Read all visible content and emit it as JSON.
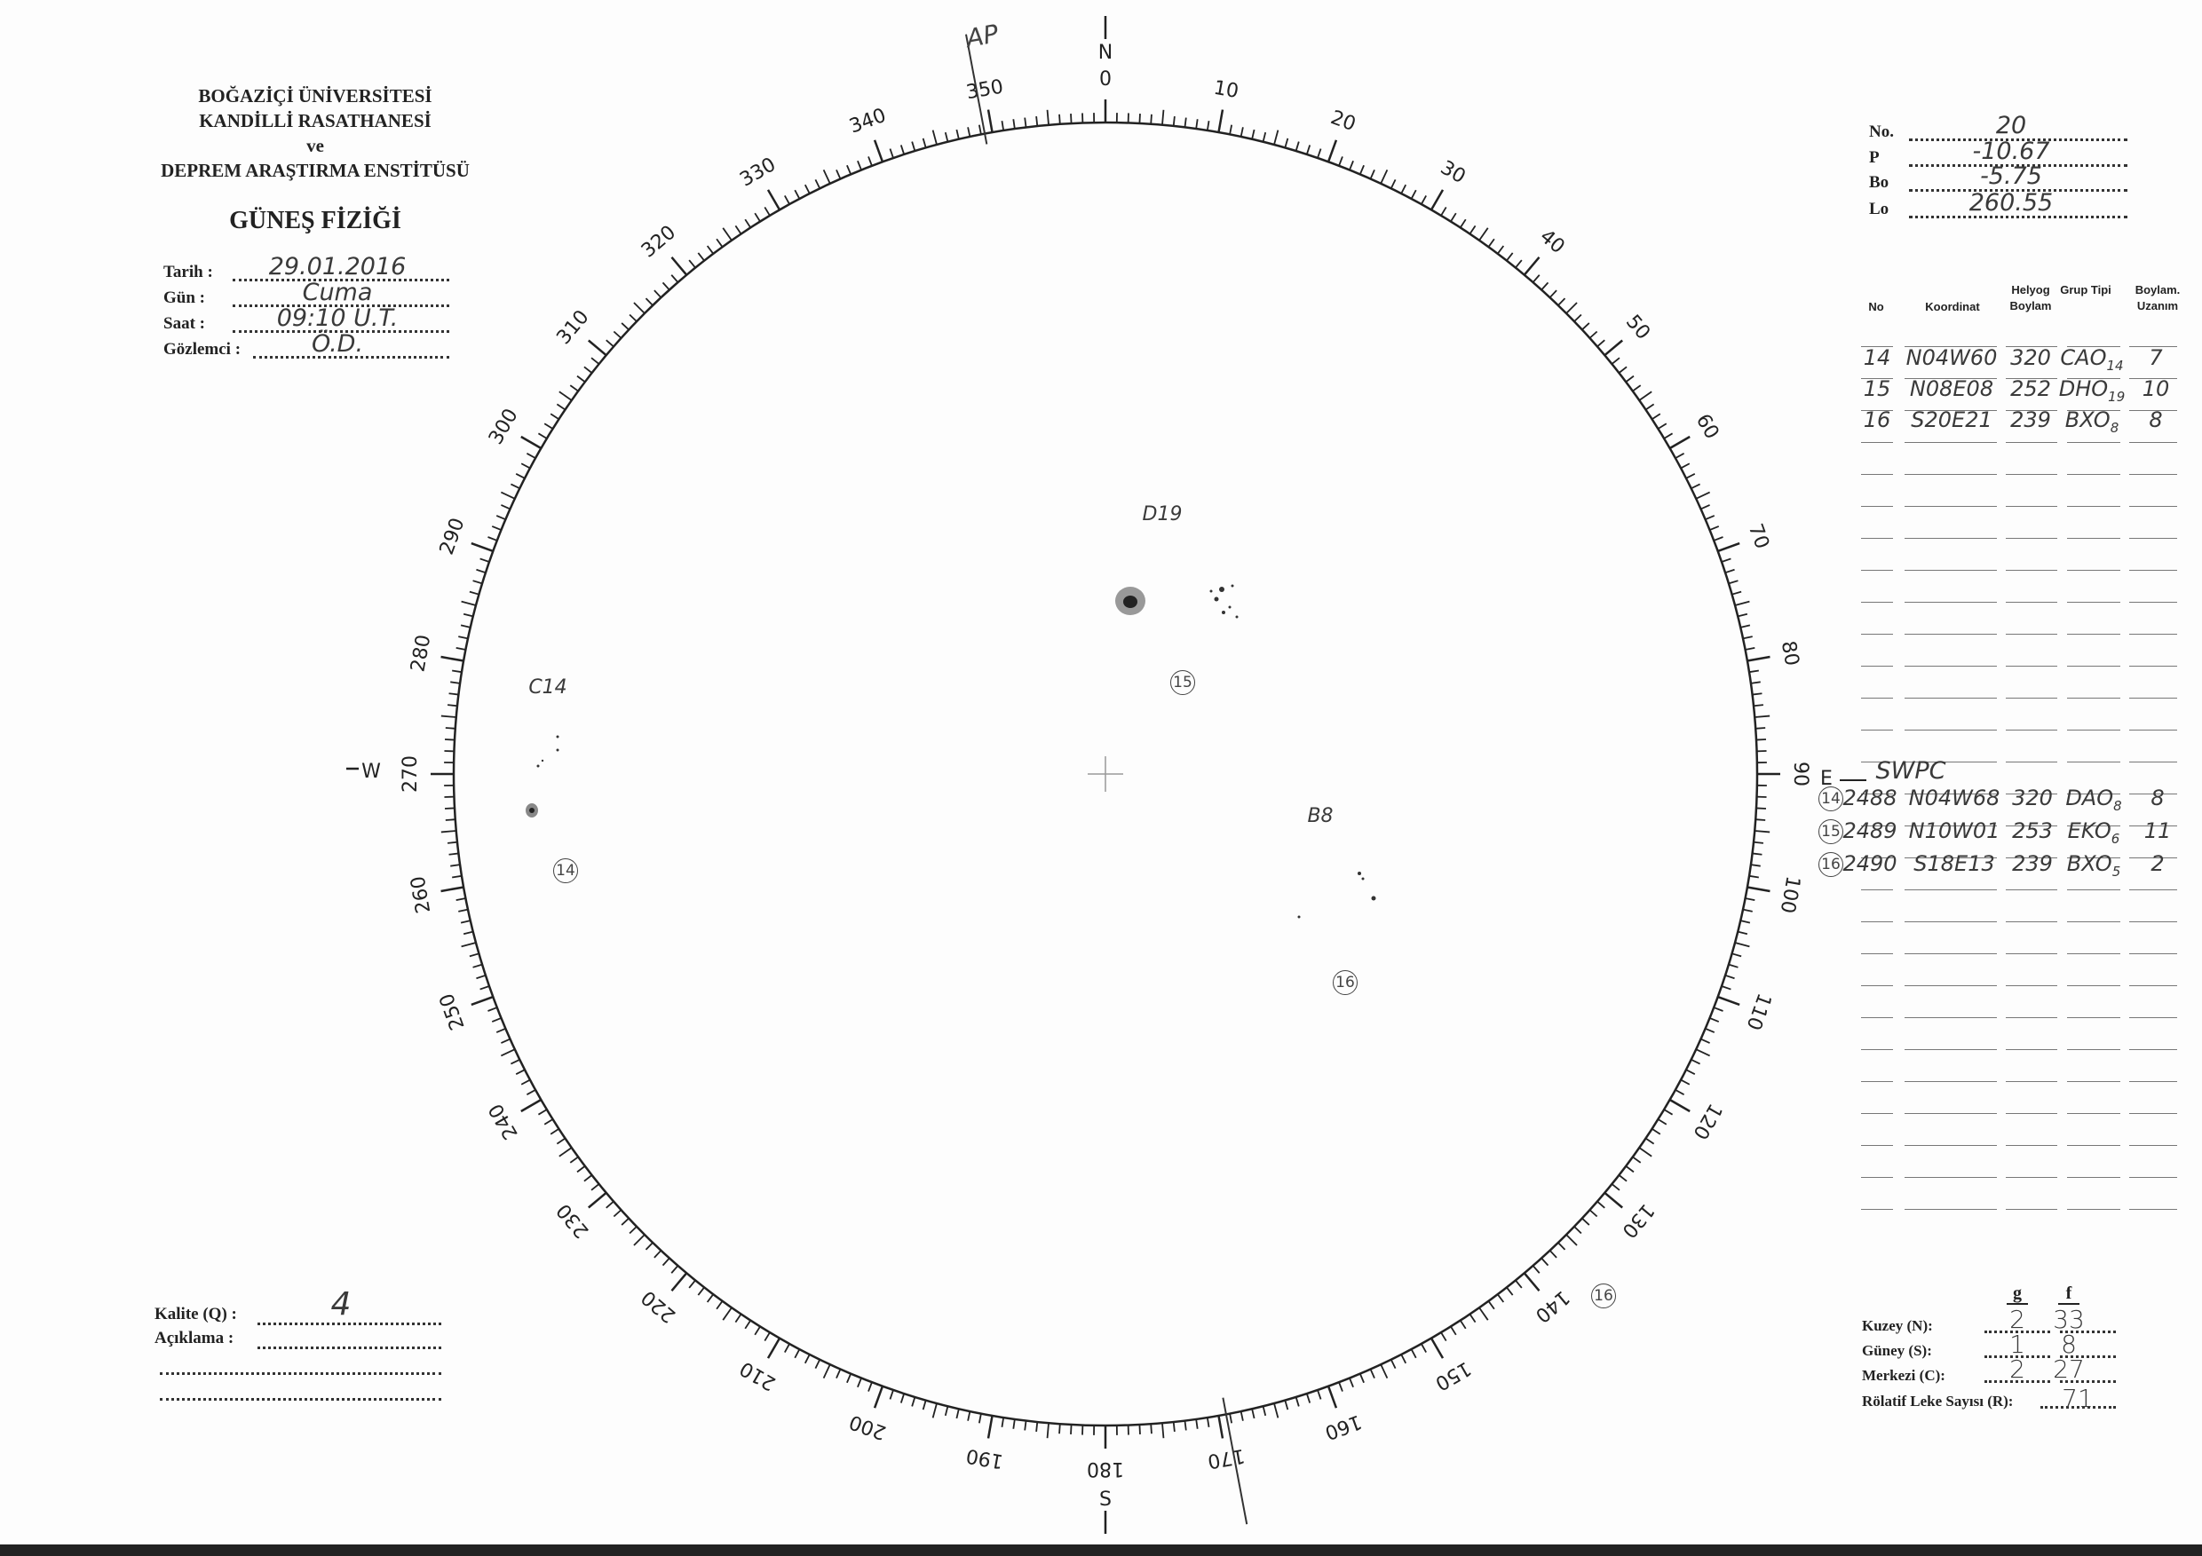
{
  "header": {
    "lines": [
      "BOĞAZİÇİ ÜNİVERSİTESİ",
      "KANDİLLİ RASATHANESİ",
      "ve",
      "DEPREM ARAŞTIRMA ENSTİTÜSÜ"
    ],
    "title": "GÜNEŞ FİZİĞİ"
  },
  "observation": [
    {
      "label": "Tarih :",
      "value": "29.01.2016"
    },
    {
      "label": "Gün :",
      "value": "Cuma"
    },
    {
      "label": "Saat :",
      "value": "09:10 U.T."
    },
    {
      "label": "Gözlemci :",
      "value": "Ö.D."
    }
  ],
  "params": [
    {
      "label": "No.",
      "value": "20"
    },
    {
      "label": "P",
      "value": "-10.67"
    },
    {
      "label": "Bo",
      "value": "-5.75"
    },
    {
      "label": "Lo",
      "value": "260.55"
    }
  ],
  "table": {
    "headers": [
      "No",
      "Koordinat",
      "Helyog Boylam",
      "Grup Tipi",
      "Boylam. Uzanım"
    ],
    "rows": [
      {
        "no": "14",
        "coord": "N04W60",
        "helyog": "320",
        "grup": "CAO",
        "sub": "14",
        "uzanim": "7"
      },
      {
        "no": "15",
        "coord": "N08E08",
        "helyog": "252",
        "grup": "DHO",
        "sub": "19",
        "uzanim": "10"
      },
      {
        "no": "16",
        "coord": "S20E21",
        "helyog": "239",
        "grup": "BXO",
        "sub": "8",
        "uzanim": "8"
      }
    ]
  },
  "swpc": {
    "title": "SWPC",
    "rows": [
      {
        "no": "14",
        "noaa": "2488",
        "coord": "N04W68",
        "helyog": "320",
        "grup": "DAO",
        "sub": "8",
        "uzanim": "8"
      },
      {
        "no": "15",
        "noaa": "2489",
        "coord": "N10W01",
        "helyog": "253",
        "grup": "EKO",
        "sub": "6",
        "uzanim": "11"
      },
      {
        "no": "16",
        "noaa": "2490",
        "coord": "S18E13",
        "helyog": "239",
        "grup": "BXO",
        "sub": "5",
        "uzanim": "2"
      }
    ]
  },
  "counts": {
    "g_header": "g",
    "f_header": "f",
    "rows": [
      {
        "label": "Kuzey (N):",
        "g": "2",
        "f": "33"
      },
      {
        "label": "Güney (S):",
        "g": "1",
        "f": "8"
      },
      {
        "label": "Merkezi (C):",
        "g": "2",
        "f": "27"
      }
    ],
    "relative_label": "Rölatif Leke Sayısı (R):",
    "relative_value": "71"
  },
  "quality": {
    "label": "Kalite (Q) :",
    "value": "4",
    "comment_label": "Açıklama :"
  },
  "dial": {
    "labels": [
      "0",
      "10",
      "20",
      "30",
      "40",
      "50",
      "60",
      "70",
      "80",
      "90",
      "100",
      "110",
      "120",
      "130",
      "140",
      "150",
      "160",
      "170",
      "180",
      "190",
      "200",
      "210",
      "220",
      "230",
      "240",
      "250",
      "260",
      "270",
      "280",
      "290",
      "300",
      "310",
      "320",
      "330",
      "340",
      "350"
    ],
    "north": "N",
    "south": "S",
    "east": "E",
    "west": "W",
    "p_angle_mark": "AP"
  },
  "disc": {
    "groups": [
      {
        "label": "D19",
        "circled": "15"
      },
      {
        "label": "C14",
        "circled": "14"
      },
      {
        "label": "B8",
        "circled": "16"
      }
    ],
    "outside_circled": "16"
  }
}
